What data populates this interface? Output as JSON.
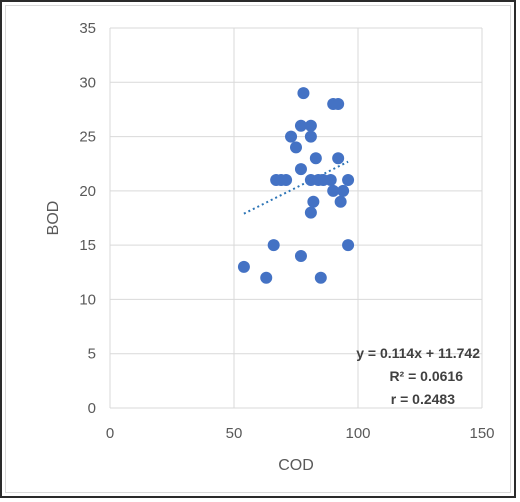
{
  "chart_data": {
    "type": "scatter",
    "title": "",
    "xlabel": "COD",
    "ylabel": "BOD",
    "xlim": [
      0,
      150
    ],
    "ylim": [
      0,
      35
    ],
    "xticks": [
      0,
      50,
      100,
      150
    ],
    "yticks": [
      0,
      5,
      10,
      15,
      20,
      25,
      30,
      35
    ],
    "grid": "vertical and horizontal gridlines",
    "legend": "none",
    "marker_color": "#4472C4",
    "points": [
      {
        "x": 54,
        "y": 13
      },
      {
        "x": 63,
        "y": 12
      },
      {
        "x": 66,
        "y": 15
      },
      {
        "x": 67,
        "y": 21
      },
      {
        "x": 69,
        "y": 21
      },
      {
        "x": 71,
        "y": 21
      },
      {
        "x": 73,
        "y": 25
      },
      {
        "x": 75,
        "y": 24
      },
      {
        "x": 77,
        "y": 26
      },
      {
        "x": 77,
        "y": 22
      },
      {
        "x": 77,
        "y": 14
      },
      {
        "x": 78,
        "y": 29
      },
      {
        "x": 81,
        "y": 26
      },
      {
        "x": 81,
        "y": 25
      },
      {
        "x": 81,
        "y": 21
      },
      {
        "x": 81,
        "y": 18
      },
      {
        "x": 82,
        "y": 19
      },
      {
        "x": 83,
        "y": 23
      },
      {
        "x": 84,
        "y": 21
      },
      {
        "x": 85,
        "y": 12
      },
      {
        "x": 86,
        "y": 21
      },
      {
        "x": 89,
        "y": 21
      },
      {
        "x": 90,
        "y": 28
      },
      {
        "x": 90,
        "y": 20
      },
      {
        "x": 92,
        "y": 28
      },
      {
        "x": 92,
        "y": 23
      },
      {
        "x": 93,
        "y": 19
      },
      {
        "x": 94,
        "y": 20
      },
      {
        "x": 96,
        "y": 15
      },
      {
        "x": 96,
        "y": 21
      }
    ],
    "trendline": {
      "slope": 0.114,
      "intercept": 11.742,
      "x_from": 54,
      "x_to": 96,
      "style": "dotted",
      "color": "#2E75B6"
    },
    "annotations": [
      "y = 0.114x + 11.742",
      "R² = 0.0616",
      "r = 0.2483"
    ]
  }
}
